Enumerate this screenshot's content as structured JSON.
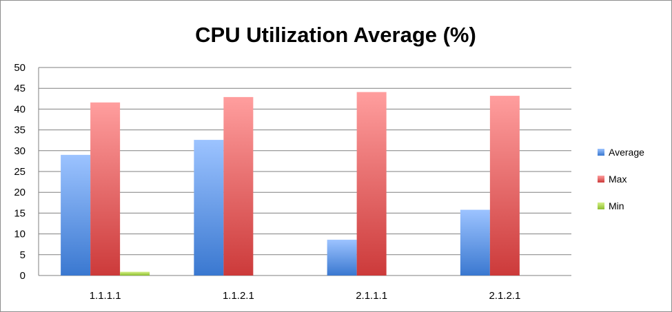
{
  "chart_data": {
    "type": "bar",
    "title": "CPU Utilization Average (%)",
    "xlabel": "",
    "ylabel": "",
    "categories": [
      "1.1.1.1",
      "1.1.2.1",
      "2.1.1.1",
      "2.1.2.1"
    ],
    "series": [
      {
        "name": "Average",
        "values": [
          29,
          32.6,
          8.6,
          15.8
        ],
        "color": "#4a86e8"
      },
      {
        "name": "Max",
        "values": [
          41.6,
          42.9,
          44.1,
          43.2
        ],
        "color": "#e05555"
      },
      {
        "name": "Min",
        "values": [
          0.9,
          0,
          0,
          0
        ],
        "color": "#9bc83a"
      }
    ],
    "ylim": [
      0,
      50
    ],
    "yticks": [
      "0",
      "5",
      "10",
      "15",
      "20",
      "25",
      "30",
      "35",
      "40",
      "45",
      "50"
    ],
    "grid": true,
    "legend_position": "right"
  }
}
